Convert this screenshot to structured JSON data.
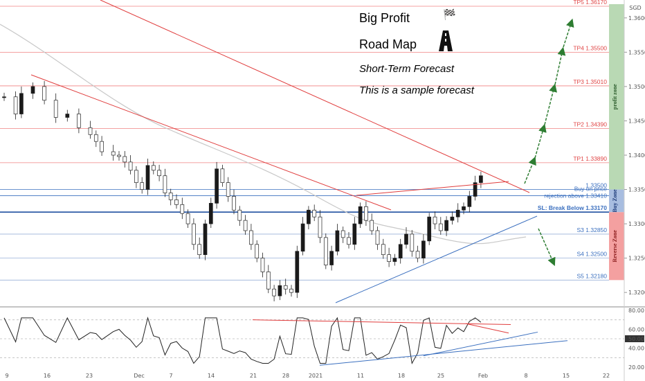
{
  "annotations": {
    "title_line1": "Big Profit",
    "title_line2": "Road Map",
    "subtitle1": "Short-Term Forecast",
    "subtitle2": "This is a sample forecast",
    "flag_icon": "chequered-flag",
    "road_icon": "road"
  },
  "currency": "SGD",
  "colors": {
    "bull_candle": "#1a1a1a",
    "bear_candle": "#ffffff",
    "target_line": "#f08080",
    "trendline": "#e03c3c",
    "support_line": "#3a6fbf",
    "forecast_arrow": "#2e7d32",
    "profit_zone": "#b9d9b4",
    "reverse_zone": "#f4a0a0",
    "buy_zone": "#a8bde0"
  },
  "chart_data": [
    {
      "type": "candlestick",
      "title": "",
      "y_range": [
        1.3182,
        1.362
      ],
      "y_ticks": [
        "1.36000",
        "1.35500",
        "1.35000",
        "1.34500",
        "1.34000",
        "1.33500",
        "1.33000",
        "1.32500",
        "1.32000"
      ],
      "x_ticks": [
        "9",
        "16",
        "23",
        "Dec",
        "7",
        "14",
        "21",
        "28",
        "2021",
        "11",
        "18",
        "25",
        "Feb",
        "8",
        "15",
        "22"
      ],
      "levels": [
        {
          "label": "TP5",
          "value": "1.36170",
          "kind": "target"
        },
        {
          "label": "TP4",
          "value": "1.35500",
          "kind": "target"
        },
        {
          "label": "TP3",
          "value": "1.35010",
          "kind": "target"
        },
        {
          "label": "TP2",
          "value": "1.34390",
          "kind": "target"
        },
        {
          "label": "TP1",
          "value": "1.33890",
          "kind": "target"
        },
        {
          "label": "",
          "value": "1.33500",
          "kind": "entry"
        },
        {
          "label": "Buy on price rejection above",
          "value": "1.33410",
          "kind": "buy"
        },
        {
          "label": "SL: Break Below",
          "value": "1.33170",
          "kind": "stop"
        },
        {
          "label": "S3",
          "value": "1.32850",
          "kind": "support"
        },
        {
          "label": "S4",
          "value": "1.32500",
          "kind": "support"
        },
        {
          "label": "S5",
          "value": "1.32180",
          "kind": "support"
        }
      ],
      "zones": [
        {
          "label": "profit zone",
          "from": 1.335,
          "to": 1.362
        },
        {
          "label": "Buy Zone",
          "from": 1.3317,
          "to": 1.335
        },
        {
          "label": "Reverse Zone",
          "from": 1.3218,
          "to": 1.3317
        }
      ],
      "close_path": [
        [
          0,
          1.3485
        ],
        [
          2,
          1.346
        ],
        [
          3,
          1.349
        ],
        [
          5,
          1.35
        ],
        [
          7,
          1.348
        ],
        [
          9,
          1.3455
        ],
        [
          11,
          1.346
        ],
        [
          13,
          1.344
        ],
        [
          15,
          1.343
        ],
        [
          16,
          1.342
        ],
        [
          17,
          1.3405
        ],
        [
          19,
          1.34
        ],
        [
          20,
          1.3398
        ],
        [
          21,
          1.339
        ],
        [
          22,
          1.3378
        ],
        [
          23,
          1.336
        ],
        [
          24,
          1.335
        ],
        [
          25,
          1.3385
        ],
        [
          26,
          1.3378
        ],
        [
          27,
          1.337
        ],
        [
          28,
          1.3345
        ],
        [
          29,
          1.3335
        ],
        [
          30,
          1.3328
        ],
        [
          31,
          1.3315
        ],
        [
          32,
          1.33
        ],
        [
          33,
          1.327
        ],
        [
          34,
          1.3255
        ],
        [
          35,
          1.33
        ],
        [
          36,
          1.333
        ],
        [
          37,
          1.338
        ],
        [
          38,
          1.336
        ],
        [
          39,
          1.334
        ],
        [
          40,
          1.332
        ],
        [
          41,
          1.3305
        ],
        [
          42,
          1.329
        ],
        [
          43,
          1.327
        ],
        [
          44,
          1.325
        ],
        [
          45,
          1.323
        ],
        [
          46,
          1.3205
        ],
        [
          47,
          1.3195
        ],
        [
          48,
          1.321
        ],
        [
          49,
          1.3205
        ],
        [
          50,
          1.32
        ],
        [
          51,
          1.326
        ],
        [
          52,
          1.33
        ],
        [
          53,
          1.332
        ],
        [
          54,
          1.331
        ],
        [
          55,
          1.328
        ],
        [
          56,
          1.324
        ],
        [
          57,
          1.326
        ],
        [
          58,
          1.329
        ],
        [
          59,
          1.328
        ],
        [
          60,
          1.327
        ],
        [
          61,
          1.33
        ],
        [
          62,
          1.3325
        ],
        [
          63,
          1.3305
        ],
        [
          64,
          1.329
        ],
        [
          65,
          1.327
        ],
        [
          66,
          1.3255
        ],
        [
          67,
          1.3245
        ],
        [
          68,
          1.325
        ],
        [
          69,
          1.327
        ],
        [
          70,
          1.3285
        ],
        [
          71,
          1.326
        ],
        [
          72,
          1.325
        ],
        [
          73,
          1.3275
        ],
        [
          74,
          1.331
        ],
        [
          75,
          1.33
        ],
        [
          76,
          1.329
        ],
        [
          77,
          1.3305
        ],
        [
          78,
          1.331
        ],
        [
          79,
          1.332
        ],
        [
          80,
          1.3325
        ],
        [
          81,
          1.334
        ],
        [
          82,
          1.336
        ],
        [
          83,
          1.337
        ]
      ],
      "trendlines": [
        "upper resistance",
        "lower resistance",
        "upper channel",
        "rising support"
      ]
    },
    {
      "type": "line",
      "title": "",
      "y_range": [
        20,
        80
      ],
      "y_ticks": [
        "80.00",
        "60.00",
        "50.00",
        "40.00",
        "20.00"
      ],
      "highlighted": "50.00"
    }
  ]
}
